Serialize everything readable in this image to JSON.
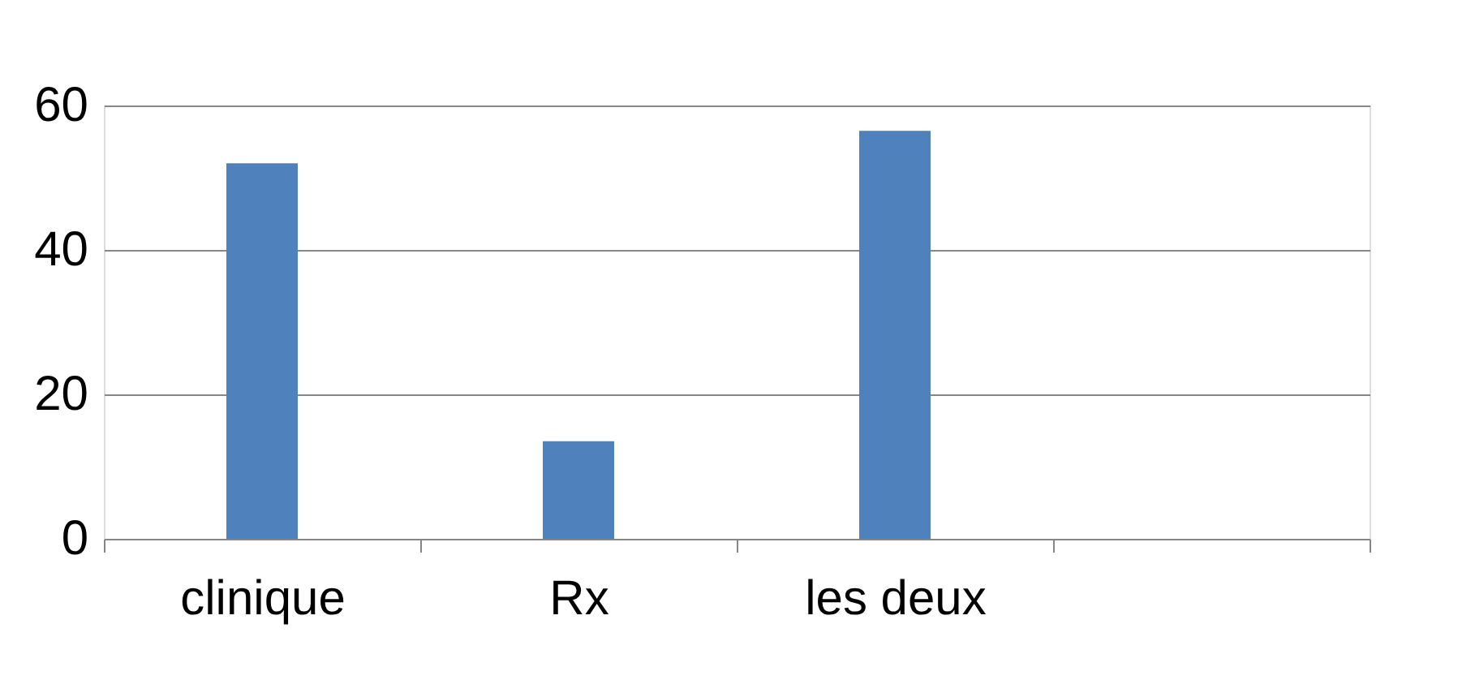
{
  "chart_data": {
    "type": "bar",
    "categories": [
      "clinique",
      "Rx",
      "les deux",
      null
    ],
    "values": [
      52,
      13.5,
      56.5,
      null
    ],
    "color": "#4f81bd",
    "ylim": [
      0,
      60
    ],
    "yticks": [
      0,
      20,
      40,
      60
    ],
    "grid": "y"
  }
}
